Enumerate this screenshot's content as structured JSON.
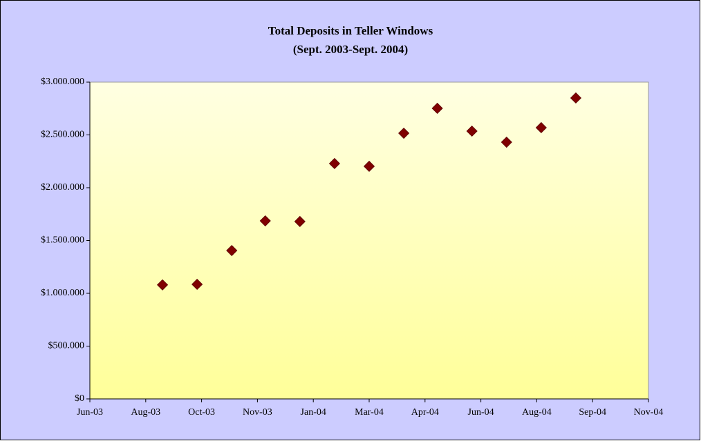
{
  "chart_data": {
    "type": "scatter",
    "title": "Total Deposits in Teller Windows",
    "subtitle": "(Sept. 2003-Sept. 2004)",
    "x": [
      37835,
      37866,
      37897,
      37927,
      37958,
      37989,
      38020,
      38051,
      38081,
      38112,
      38143,
      38174,
      38205
    ],
    "series": [
      {
        "color": "#800000",
        "values": [
          1080000,
          1085000,
          1405000,
          1686000,
          1680000,
          2229000,
          2203000,
          2516000,
          2752000,
          2536000,
          2431000,
          2569000,
          2850000
        ]
      }
    ],
    "xlim": [
      37770,
      38270
    ],
    "xticks": [
      {
        "value": 37770,
        "label": "Jun-03"
      },
      {
        "value": 37820,
        "label": "Aug-03"
      },
      {
        "value": 37870,
        "label": "Oct-03"
      },
      {
        "value": 37920,
        "label": "Nov-03"
      },
      {
        "value": 37970,
        "label": "Jan-04"
      },
      {
        "value": 38020,
        "label": "Mar-04"
      },
      {
        "value": 38070,
        "label": "Apr-04"
      },
      {
        "value": 38120,
        "label": "Jun-04"
      },
      {
        "value": 38170,
        "label": "Aug-04"
      },
      {
        "value": 38220,
        "label": "Sep-04"
      },
      {
        "value": 38270,
        "label": "Nov-04"
      }
    ],
    "ylim": [
      0,
      3000000
    ],
    "yticks": [
      {
        "value": 0,
        "label": "$0"
      },
      {
        "value": 500000,
        "label": "$500.000"
      },
      {
        "value": 1000000,
        "label": "$1.000.000"
      },
      {
        "value": 1500000,
        "label": "$1.500.000"
      },
      {
        "value": 2000000,
        "label": "$2.000.000"
      },
      {
        "value": 2500000,
        "label": "$2.500.000"
      },
      {
        "value": 3000000,
        "label": "$3.000.000"
      }
    ],
    "grid": false
  }
}
